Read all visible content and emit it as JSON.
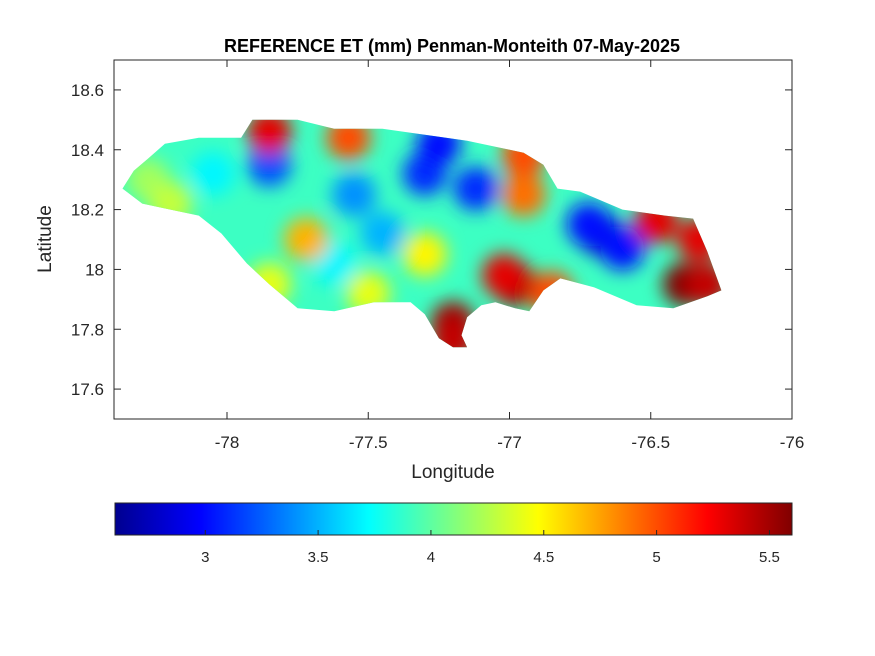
{
  "chart_data": {
    "type": "heatmap",
    "title": "REFERENCE ET (mm) Penman-Monteith 07-May-2025",
    "xlabel": "Longitude",
    "ylabel": "Latitude",
    "xlim": [
      -78.4,
      -76
    ],
    "ylim": [
      17.5,
      18.7
    ],
    "xticks": [
      -78,
      -77.5,
      -77,
      -76.5,
      -76
    ],
    "yticks": [
      17.6,
      17.8,
      18,
      18.2,
      18.4,
      18.6
    ],
    "xtick_labels": [
      "-78",
      "-77.5",
      "-77",
      "-76.5",
      "-76"
    ],
    "ytick_labels": [
      "17.6",
      "17.8",
      "18",
      "18.2",
      "18.4",
      "18.6"
    ],
    "grid": false,
    "colormap": "jet",
    "clim": [
      2.6,
      5.6
    ],
    "colorbar": {
      "location": "south",
      "ticks": [
        3,
        3.5,
        4,
        4.5,
        5,
        5.5
      ],
      "tick_labels": [
        "3",
        "3.5",
        "4",
        "4.5",
        "5",
        "5.5"
      ]
    },
    "region_outline_lonlat": [
      [
        -78.37,
        18.27
      ],
      [
        -78.33,
        18.33
      ],
      [
        -78.28,
        18.37
      ],
      [
        -78.22,
        18.42
      ],
      [
        -78.1,
        18.44
      ],
      [
        -77.95,
        18.44
      ],
      [
        -77.91,
        18.5
      ],
      [
        -77.75,
        18.5
      ],
      [
        -77.62,
        18.47
      ],
      [
        -77.45,
        18.47
      ],
      [
        -77.3,
        18.45
      ],
      [
        -77.15,
        18.43
      ],
      [
        -77.05,
        18.41
      ],
      [
        -76.95,
        18.39
      ],
      [
        -76.88,
        18.35
      ],
      [
        -76.83,
        18.27
      ],
      [
        -76.75,
        18.26
      ],
      [
        -76.6,
        18.2
      ],
      [
        -76.45,
        18.18
      ],
      [
        -76.35,
        18.17
      ],
      [
        -76.3,
        18.06
      ],
      [
        -76.25,
        17.93
      ],
      [
        -76.3,
        17.91
      ],
      [
        -76.42,
        17.87
      ],
      [
        -76.55,
        17.88
      ],
      [
        -76.7,
        17.94
      ],
      [
        -76.82,
        17.97
      ],
      [
        -76.88,
        17.93
      ],
      [
        -76.93,
        17.86
      ],
      [
        -76.98,
        17.87
      ],
      [
        -77.05,
        17.89
      ],
      [
        -77.1,
        17.88
      ],
      [
        -77.15,
        17.84
      ],
      [
        -77.17,
        17.78
      ],
      [
        -77.15,
        17.74
      ],
      [
        -77.2,
        17.74
      ],
      [
        -77.25,
        17.77
      ],
      [
        -77.3,
        17.85
      ],
      [
        -77.35,
        17.89
      ],
      [
        -77.48,
        17.89
      ],
      [
        -77.62,
        17.86
      ],
      [
        -77.75,
        17.87
      ],
      [
        -77.85,
        17.95
      ],
      [
        -77.93,
        18.02
      ],
      [
        -78.02,
        18.12
      ],
      [
        -78.1,
        18.18
      ],
      [
        -78.2,
        18.2
      ],
      [
        -78.3,
        18.22
      ],
      [
        -78.37,
        18.27
      ]
    ],
    "value_hotspots_lonlat": [
      {
        "lon": -76.68,
        "lat": 18.12,
        "value": 2.8
      },
      {
        "lon": -76.72,
        "lat": 18.15,
        "value": 3.0
      },
      {
        "lon": -76.6,
        "lat": 18.07,
        "value": 3.0
      },
      {
        "lon": -77.3,
        "lat": 18.32,
        "value": 3.1
      },
      {
        "lon": -77.25,
        "lat": 18.42,
        "value": 3.0
      },
      {
        "lon": -77.12,
        "lat": 18.27,
        "value": 3.1
      },
      {
        "lon": -77.85,
        "lat": 18.35,
        "value": 3.2
      },
      {
        "lon": -77.55,
        "lat": 18.25,
        "value": 3.4
      },
      {
        "lon": -77.45,
        "lat": 18.12,
        "value": 3.5
      },
      {
        "lon": -77.62,
        "lat": 18.02,
        "value": 3.7
      },
      {
        "lon": -78.05,
        "lat": 18.32,
        "value": 3.7
      },
      {
        "lon": -78.28,
        "lat": 18.3,
        "value": 4.2
      },
      {
        "lon": -77.72,
        "lat": 18.1,
        "value": 4.7
      },
      {
        "lon": -77.3,
        "lat": 18.05,
        "value": 4.5
      },
      {
        "lon": -76.95,
        "lat": 18.25,
        "value": 4.9
      },
      {
        "lon": -77.85,
        "lat": 18.46,
        "value": 5.3
      },
      {
        "lon": -77.57,
        "lat": 18.44,
        "value": 5.0
      },
      {
        "lon": -76.95,
        "lat": 18.38,
        "value": 5.0
      },
      {
        "lon": -76.48,
        "lat": 18.16,
        "value": 5.3
      },
      {
        "lon": -76.33,
        "lat": 18.1,
        "value": 5.3
      },
      {
        "lon": -76.38,
        "lat": 17.95,
        "value": 5.6
      },
      {
        "lon": -76.3,
        "lat": 17.95,
        "value": 5.4
      },
      {
        "lon": -76.98,
        "lat": 17.95,
        "value": 5.5
      },
      {
        "lon": -77.02,
        "lat": 17.98,
        "value": 5.3
      },
      {
        "lon": -77.2,
        "lat": 17.82,
        "value": 5.5
      },
      {
        "lon": -77.2,
        "lat": 17.76,
        "value": 5.4
      },
      {
        "lon": -76.85,
        "lat": 17.92,
        "value": 5.0
      },
      {
        "lon": -77.5,
        "lat": 17.92,
        "value": 4.4
      },
      {
        "lon": -77.85,
        "lat": 17.95,
        "value": 4.4
      },
      {
        "lon": -78.2,
        "lat": 18.22,
        "value": 4.3
      }
    ],
    "background_value": 3.9
  }
}
